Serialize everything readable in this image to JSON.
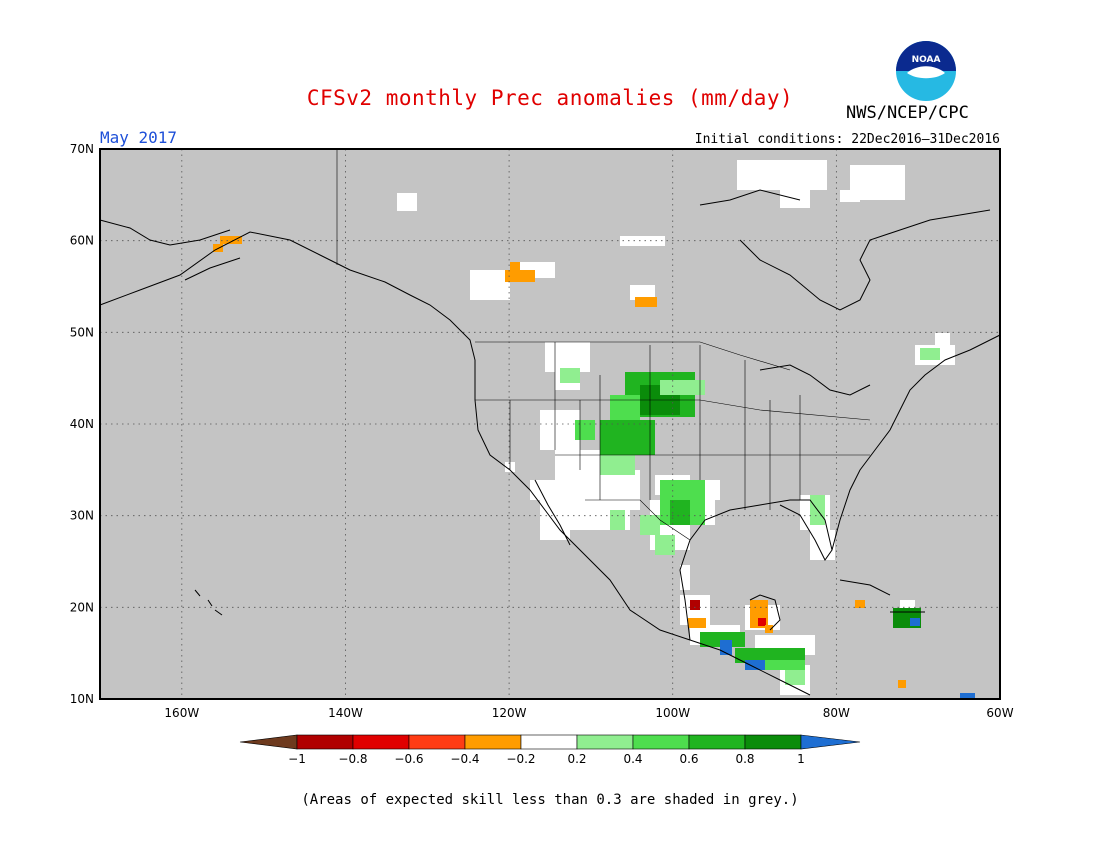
{
  "title": "CFSv2 monthly Prec anomalies (mm/day)",
  "valid_month": "May 2017",
  "initial_conditions": "Initial conditions: 22Dec2016–31Dec2016",
  "agency": "NWS/NCEP/CPC",
  "logo_text": "NOAA",
  "footnote": "(Areas of expected skill less than 0.3 are shaded in grey.)",
  "map": {
    "lon_range": [
      -170,
      -60
    ],
    "lat_range": [
      10,
      70
    ],
    "lat_labels": [
      {
        "lat": 70,
        "text": "70N"
      },
      {
        "lat": 60,
        "text": "60N"
      },
      {
        "lat": 50,
        "text": "50N"
      },
      {
        "lat": 40,
        "text": "40N"
      },
      {
        "lat": 30,
        "text": "30N"
      },
      {
        "lat": 20,
        "text": "20N"
      },
      {
        "lat": 10,
        "text": "10N"
      }
    ],
    "lon_labels": [
      {
        "lon": -160,
        "text": "160W"
      },
      {
        "lon": -140,
        "text": "140W"
      },
      {
        "lon": -120,
        "text": "120W"
      },
      {
        "lon": -100,
        "text": "100W"
      },
      {
        "lon": -80,
        "text": "80W"
      },
      {
        "lon": -60,
        "text": "60W"
      }
    ],
    "grey_color": "#c4c4c4"
  },
  "colorbar": {
    "labels": [
      "−1",
      "−0.8",
      "−0.6",
      "−0.4",
      "−0.2",
      "0.2",
      "0.4",
      "0.6",
      "0.8",
      "1"
    ],
    "colors": [
      "#6e3a1e",
      "#b00000",
      "#e00000",
      "#ff3c14",
      "#ff9c00",
      "#ffffff",
      "#90ee90",
      "#4ede4e",
      "#20b420",
      "#0a8c0a",
      "#1e6ed2"
    ]
  },
  "anomaly_regions": [
    {
      "id": "alaska-orange",
      "category": "-0.4",
      "color": "#ff9c00"
    },
    {
      "id": "nw-canada-orange",
      "category": "-0.4",
      "color": "#ff9c00"
    },
    {
      "id": "central-canada-orange",
      "category": "-0.4",
      "color": "#ff9c00"
    },
    {
      "id": "central-plains-green",
      "category": "0.6",
      "color": "#20b420"
    },
    {
      "id": "texas-green",
      "category": "0.4",
      "color": "#4ede4e"
    },
    {
      "id": "southeast-light-green",
      "category": "0.2",
      "color": "#90ee90"
    },
    {
      "id": "yucatan-orange",
      "category": "-0.4",
      "color": "#ff9c00"
    },
    {
      "id": "central-america-green",
      "category": "0.6",
      "color": "#20b420"
    },
    {
      "id": "hispaniola-green",
      "category": "0.8",
      "color": "#0a8c0a"
    }
  ]
}
